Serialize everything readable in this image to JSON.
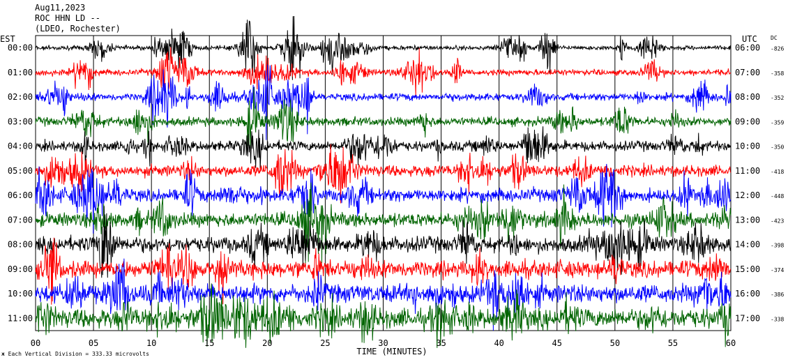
{
  "header": {
    "date": "Aug11,2023",
    "station": "ROC HHN LD --",
    "location": "(LDEO, Rochester)"
  },
  "left_tz": "EST",
  "right_tz": "UTC",
  "dc_label": "DC",
  "chart_data": {
    "type": "line",
    "xlabel": "TIME (MINUTES)",
    "x_ticks": [
      "00",
      "05",
      "10",
      "15",
      "20",
      "25",
      "30",
      "35",
      "40",
      "45",
      "50",
      "55",
      "60"
    ],
    "xlim": [
      0,
      60
    ],
    "grid": true,
    "scale_note": "Each Vertical Division = 333.33 microvolts",
    "rows": [
      {
        "left": "00:00",
        "right": "06:00",
        "dc": "-826",
        "color": "#000000"
      },
      {
        "left": "01:00",
        "right": "07:00",
        "dc": "-358",
        "color": "#ff0000"
      },
      {
        "left": "02:00",
        "right": "08:00",
        "dc": "-352",
        "color": "#0000ff"
      },
      {
        "left": "03:00",
        "right": "09:00",
        "dc": "-359",
        "color": "#006400"
      },
      {
        "left": "04:00",
        "right": "10:00",
        "dc": "-350",
        "color": "#000000"
      },
      {
        "left": "05:00",
        "right": "11:00",
        "dc": "-418",
        "color": "#ff0000"
      },
      {
        "left": "06:00",
        "right": "12:00",
        "dc": "-448",
        "color": "#0000ff"
      },
      {
        "left": "07:00",
        "right": "13:00",
        "dc": "-423",
        "color": "#006400"
      },
      {
        "left": "08:00",
        "right": "14:00",
        "dc": "-398",
        "color": "#000000"
      },
      {
        "left": "09:00",
        "right": "15:00",
        "dc": "-374",
        "color": "#ff0000"
      },
      {
        "left": "10:00",
        "right": "16:00",
        "dc": "-386",
        "color": "#0000ff"
      },
      {
        "left": "11:00",
        "right": "17:00",
        "dc": "-338",
        "color": "#006400"
      }
    ]
  }
}
